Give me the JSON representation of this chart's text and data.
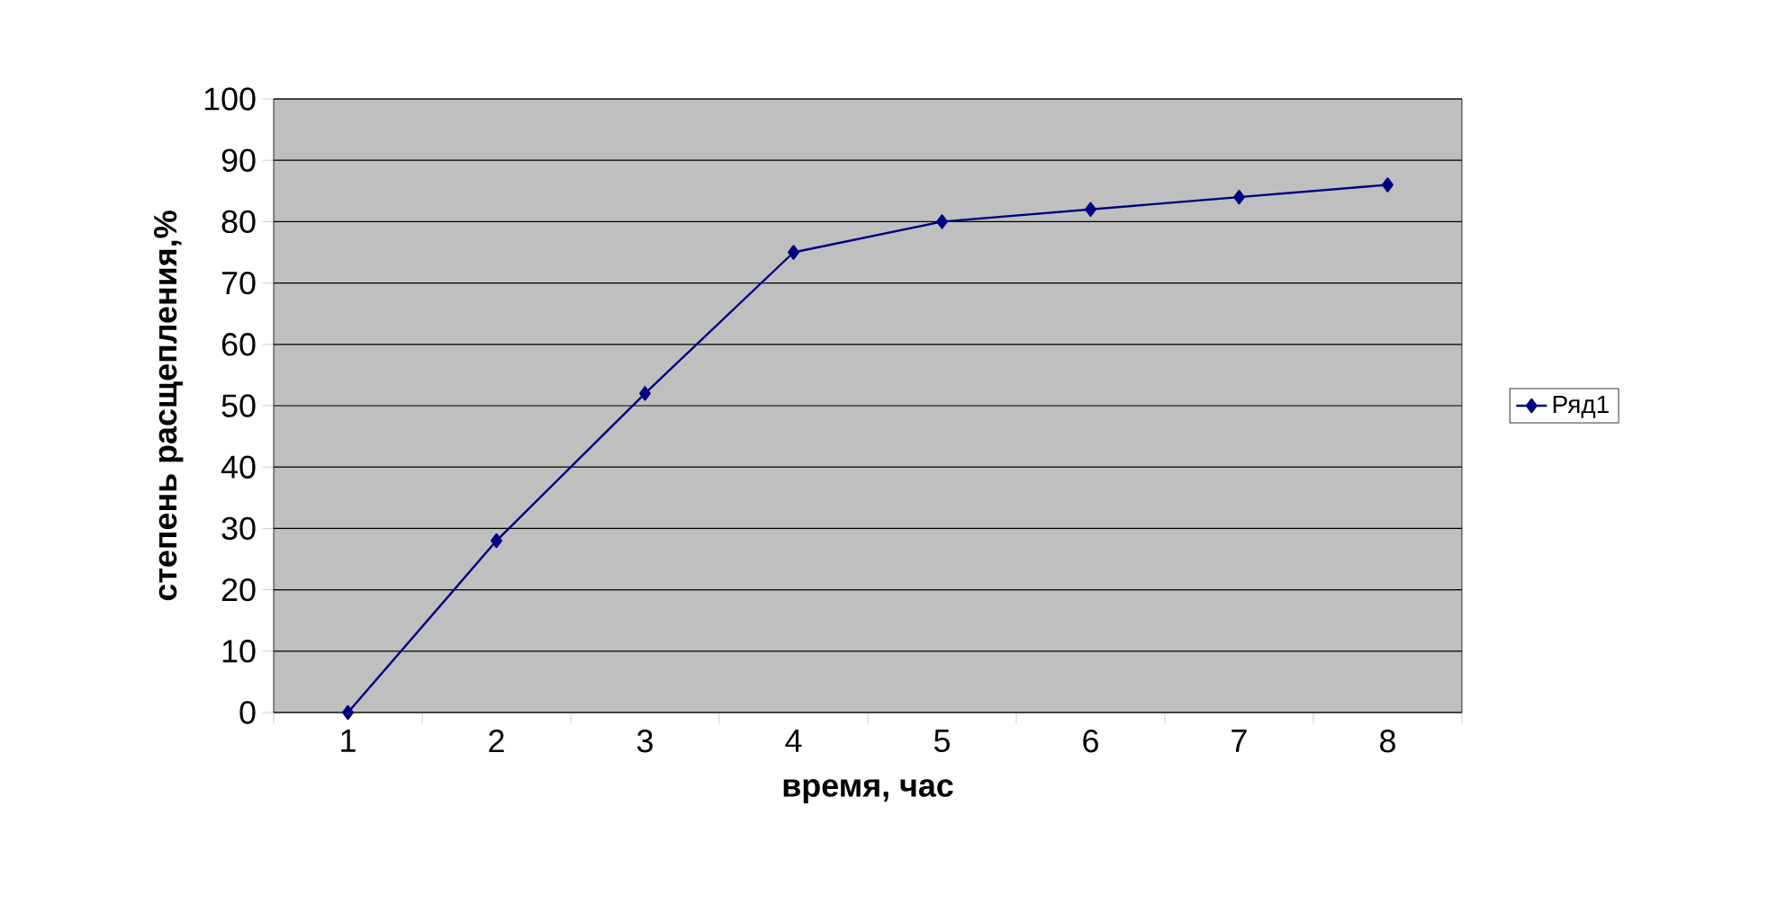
{
  "chart_data": {
    "type": "line",
    "xlabel": "время, час",
    "ylabel": "степень расщепления,%",
    "categories": [
      "1",
      "2",
      "3",
      "4",
      "5",
      "6",
      "7",
      "8"
    ],
    "series": [
      {
        "name": "Ряд1",
        "color": "#000080",
        "values": [
          0,
          28,
          52,
          75,
          80,
          82,
          84,
          86
        ]
      }
    ],
    "ylim": [
      0,
      100
    ],
    "yticks": [
      0,
      10,
      20,
      30,
      40,
      50,
      60,
      70,
      80,
      90,
      100
    ],
    "grid": "y",
    "legend": "right",
    "marker": "diamond",
    "line_style": "solid"
  }
}
